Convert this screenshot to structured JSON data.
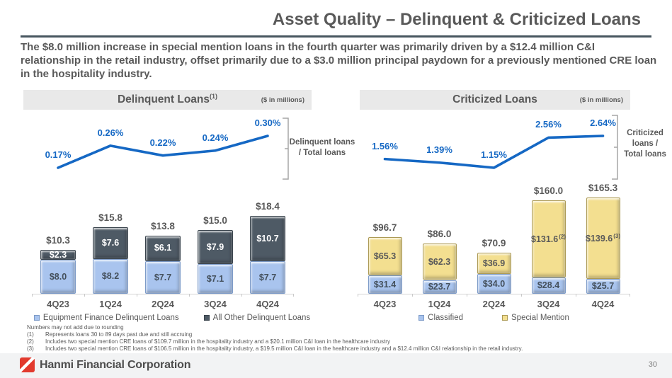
{
  "slide": {
    "title": "Asset Quality – Delinquent & Criticized Loans",
    "subtitle": "The $8.0 million increase in special mention loans in the fourth quarter was primarily driven by a $12.4 million C&I relationship in the retail industry, offset primarily due to a $3.0 million principal paydown for a previously mentioned CRE loan in the hospitality industry.",
    "page_number": "30",
    "brand": "Hanmi Financial Corporation"
  },
  "footnotes": {
    "note": "Numbers may not add due to rounding",
    "items": [
      {
        "marker": "(1)",
        "text": "Represents loans 30 to 89 days past due and still accruing"
      },
      {
        "marker": "(2)",
        "text": "Includes two special mention CRE loans of $109.7 million in the hospitality industry and a $20.1 million C&I loan in the healthcare industry"
      },
      {
        "marker": "(3)",
        "text": "Includes two special mention CRE loans of $106.5 million in the hospitality industry, a $19.5 million C&I loan in the healthcare industry and a $12.4 million C&I relationship in the retail industry."
      }
    ]
  },
  "chart_data": [
    {
      "type": "line",
      "title": "Delinquent Loans",
      "title_sup": "(1)",
      "units_label": "($ in millions)",
      "x": [
        "4Q23",
        "1Q24",
        "2Q24",
        "3Q24",
        "4Q24"
      ],
      "values": [
        0.17,
        0.26,
        0.22,
        0.24,
        0.3
      ],
      "point_labels": [
        "0.17%",
        "0.26%",
        "0.22%",
        "0.24%",
        "0.30%"
      ],
      "side_label": "Delinquent loans\n/ Total loans",
      "line_color": "#1568C4",
      "label_color": "#1568C4"
    },
    {
      "type": "bar",
      "stacked": true,
      "categories": [
        "4Q23",
        "1Q24",
        "2Q24",
        "3Q24",
        "4Q24"
      ],
      "series": [
        {
          "name": "Equipment Finance Delinquent Loans",
          "color": "#A9C4EE",
          "border": "#7D9BC8",
          "label_color": "#44505C",
          "values": [
            8.0,
            8.2,
            7.7,
            7.1,
            7.7
          ],
          "labels": [
            "$8.0",
            "$8.2",
            "$7.7",
            "$7.1",
            "$7.7"
          ]
        },
        {
          "name": "All Other Delinquent Loans",
          "color": "#4E5A65",
          "border": "#39434C",
          "label_color": "#FFFFFF",
          "values": [
            2.3,
            7.6,
            6.1,
            7.9,
            10.7
          ],
          "labels": [
            "$2.3",
            "$7.6",
            "$6.1",
            "$7.9",
            "$10.7"
          ]
        }
      ],
      "totals": [
        10.3,
        15.8,
        13.8,
        15.0,
        18.4
      ],
      "total_labels": [
        "$10.3",
        "$15.8",
        "$13.8",
        "$15.0",
        "$18.4"
      ]
    },
    {
      "type": "line",
      "title": "Criticized Loans",
      "title_sup": "",
      "units_label": "($ in millions)",
      "x": [
        "4Q23",
        "1Q24",
        "2Q24",
        "3Q24",
        "4Q24"
      ],
      "values": [
        1.56,
        1.39,
        1.15,
        2.56,
        2.64
      ],
      "point_labels": [
        "1.56%",
        "1.39%",
        "1.15%",
        "2.56%",
        "2.64%"
      ],
      "side_label": "Criticized\nloans /\nTotal loans",
      "line_color": "#1568C4",
      "label_color": "#1568C4"
    },
    {
      "type": "bar",
      "stacked": true,
      "categories": [
        "4Q23",
        "1Q24",
        "2Q24",
        "3Q24",
        "4Q24"
      ],
      "series": [
        {
          "name": "Classified",
          "color": "#A9C4EE",
          "border": "#7D9BC8",
          "label_color": "#44505C",
          "values": [
            31.4,
            23.7,
            34.0,
            28.4,
            25.7
          ],
          "labels": [
            "$31.4",
            "$23.7",
            "$34.0",
            "$28.4",
            "$25.7"
          ],
          "sups": [
            "",
            "",
            "",
            "",
            ""
          ]
        },
        {
          "name": "Special Mention",
          "color": "#F3DF90",
          "border": "#AC9A55",
          "label_color": "#595959",
          "values": [
            65.3,
            62.3,
            36.9,
            131.6,
            139.6
          ],
          "labels": [
            "$65.3",
            "$62.3",
            "$36.9",
            "$131.6",
            "$139.6"
          ],
          "sups": [
            "",
            "",
            "",
            "(2)",
            "(3)"
          ]
        }
      ],
      "totals": [
        96.7,
        86.0,
        70.9,
        160.0,
        165.3
      ],
      "total_labels": [
        "$96.7",
        "$86.0",
        "$70.9",
        "$160.0",
        "$165.3"
      ]
    }
  ]
}
